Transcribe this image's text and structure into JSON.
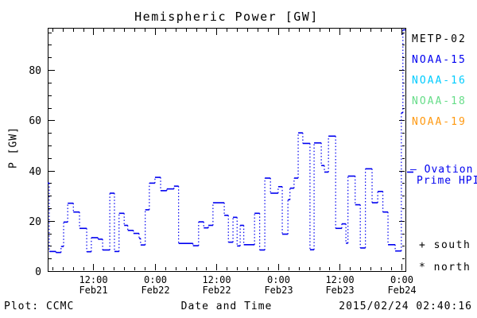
{
  "header": {
    "title": "Hemispheric Power [GW]"
  },
  "chart_data": {
    "type": "line",
    "line_style": "histogram steps with dotted risers",
    "title": "Hemispheric Power [GW]",
    "xlabel": "Date and Time",
    "ylabel": "P [GW]",
    "x_unit": "hours since 2015-02-21 00:00",
    "xlim": [
      3.1,
      72.8
    ],
    "ylim": [
      0,
      96.8
    ],
    "grid": false,
    "y_major_ticks": [
      0,
      20,
      40,
      60,
      80
    ],
    "y_minor_step": 5,
    "x_minor_step_hours": 2,
    "x_major_ticks": [
      {
        "hour": 12,
        "time": "12:00",
        "date": "Feb21"
      },
      {
        "hour": 24,
        "time": "0:00",
        "date": "Feb22"
      },
      {
        "hour": 36,
        "time": "12:00",
        "date": "Feb22"
      },
      {
        "hour": 48,
        "time": "0:00",
        "date": "Feb23"
      },
      {
        "hour": 60,
        "time": "12:00",
        "date": "Feb23"
      },
      {
        "hour": 72,
        "time": "0:00",
        "date": "Feb24"
      }
    ],
    "series": [
      {
        "name": "Ovation Prime HPI",
        "color": "#0000f0",
        "steps_hour_value": [
          [
            3.1,
            35
          ],
          [
            3.4,
            7.8
          ],
          [
            4.7,
            7.4
          ],
          [
            5.7,
            9.8
          ],
          [
            6.2,
            19.5
          ],
          [
            7.0,
            27
          ],
          [
            8.1,
            23.5
          ],
          [
            9.3,
            17
          ],
          [
            10.7,
            7.7
          ],
          [
            11.6,
            13.3
          ],
          [
            12.9,
            12.7
          ],
          [
            13.8,
            8.4
          ],
          [
            15.2,
            31
          ],
          [
            16.1,
            7.8
          ],
          [
            17.0,
            23
          ],
          [
            18.0,
            18.2
          ],
          [
            18.7,
            16.2
          ],
          [
            19.8,
            15.0
          ],
          [
            20.9,
            13.0
          ],
          [
            21.2,
            10.4
          ],
          [
            22.1,
            24.4
          ],
          [
            22.9,
            35
          ],
          [
            24.0,
            37.3
          ],
          [
            25.1,
            32
          ],
          [
            26.3,
            32.7
          ],
          [
            27.7,
            33.8
          ],
          [
            28.6,
            11.0
          ],
          [
            31.4,
            10.1
          ],
          [
            32.5,
            19.6
          ],
          [
            33.5,
            17.2
          ],
          [
            34.4,
            18.2
          ],
          [
            35.3,
            27.2
          ],
          [
            37.5,
            22.2
          ],
          [
            38.3,
            11.5
          ],
          [
            39.2,
            21.4
          ],
          [
            40.0,
            10.0
          ],
          [
            40.6,
            18.2
          ],
          [
            41.3,
            10.5
          ],
          [
            43.4,
            23.0
          ],
          [
            44.4,
            8.4
          ],
          [
            45.4,
            37.0
          ],
          [
            46.5,
            31.0
          ],
          [
            48.0,
            33.6
          ],
          [
            48.8,
            14.7
          ],
          [
            49.9,
            28.4
          ],
          [
            50.3,
            33.0
          ],
          [
            51.1,
            37.0
          ],
          [
            51.9,
            55.0
          ],
          [
            52.8,
            50.8
          ],
          [
            54.2,
            8.5
          ],
          [
            55.0,
            51.0
          ],
          [
            56.4,
            42.0
          ],
          [
            57.0,
            39.4
          ],
          [
            57.8,
            53.7
          ],
          [
            59.2,
            17.0
          ],
          [
            60.4,
            18.8
          ],
          [
            61.2,
            11.1
          ],
          [
            61.6,
            37.8
          ],
          [
            63.0,
            26.4
          ],
          [
            64.0,
            9.2
          ],
          [
            65.0,
            40.7
          ],
          [
            66.3,
            27.2
          ],
          [
            67.4,
            31.7
          ],
          [
            68.4,
            23.5
          ],
          [
            69.4,
            10.5
          ],
          [
            70.8,
            8.0
          ],
          [
            72.0,
            63.0
          ],
          [
            72.3,
            96.0
          ]
        ]
      }
    ]
  },
  "legend": {
    "satellites": [
      {
        "label": "METP-02",
        "color": "#000000"
      },
      {
        "label": "NOAA-15",
        "color": "#0000f0"
      },
      {
        "label": "NOAA-16",
        "color": "#00ccff"
      },
      {
        "label": "NOAA-18",
        "color": "#66dd88"
      },
      {
        "label": "NOAA-19",
        "color": "#ff9911"
      }
    ],
    "ovation": {
      "line1": "— Ovation",
      "line2": "Prime HPI",
      "color": "#0000f0"
    },
    "markers": [
      {
        "symbol": "+",
        "label": "south"
      },
      {
        "symbol": "*",
        "label": "north"
      }
    ]
  },
  "footer": {
    "plot_credit": "Plot: CCMC",
    "axis_title": "Date and Time",
    "timestamp": "2015/02/24 02:40:16"
  }
}
